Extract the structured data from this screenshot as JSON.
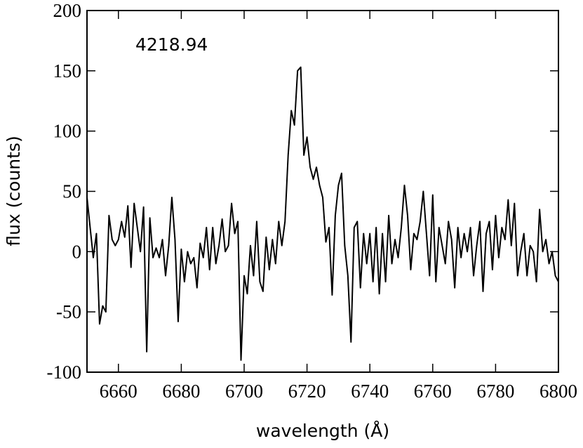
{
  "chart_data": {
    "type": "line",
    "annotation": "4218.94",
    "xlabel": "wavelength (Å)",
    "ylabel": "flux (counts)",
    "xlim": [
      6650,
      6800
    ],
    "ylim": [
      -100,
      200
    ],
    "xticks": [
      6660,
      6680,
      6700,
      6720,
      6740,
      6760,
      6780,
      6800
    ],
    "yticks": [
      -100,
      -50,
      0,
      50,
      100,
      150,
      200
    ],
    "grid": false,
    "series": [
      {
        "color": "#000000",
        "x": [
          6650,
          6651,
          6652,
          6653,
          6654,
          6655,
          6656,
          6657,
          6658,
          6659,
          6660,
          6661,
          6662,
          6663,
          6664,
          6665,
          6666,
          6667,
          6668,
          6669,
          6670,
          6671,
          6672,
          6673,
          6674,
          6675,
          6676,
          6677,
          6678,
          6679,
          6680,
          6681,
          6682,
          6683,
          6684,
          6685,
          6686,
          6687,
          6688,
          6689,
          6690,
          6691,
          6692,
          6693,
          6694,
          6695,
          6696,
          6697,
          6698,
          6699,
          6700,
          6701,
          6702,
          6703,
          6704,
          6705,
          6706,
          6707,
          6708,
          6709,
          6710,
          6711,
          6712,
          6713,
          6714,
          6715,
          6716,
          6717,
          6718,
          6719,
          6720,
          6721,
          6722,
          6723,
          6724,
          6725,
          6726,
          6727,
          6728,
          6729,
          6730,
          6731,
          6732,
          6733,
          6734,
          6735,
          6736,
          6737,
          6738,
          6739,
          6740,
          6741,
          6742,
          6743,
          6744,
          6745,
          6746,
          6747,
          6748,
          6749,
          6750,
          6751,
          6752,
          6753,
          6754,
          6755,
          6756,
          6757,
          6758,
          6759,
          6760,
          6761,
          6762,
          6763,
          6764,
          6765,
          6766,
          6767,
          6768,
          6769,
          6770,
          6771,
          6772,
          6773,
          6774,
          6775,
          6776,
          6777,
          6778,
          6779,
          6780,
          6781,
          6782,
          6783,
          6784,
          6785,
          6786,
          6787,
          6788,
          6789,
          6790,
          6791,
          6792,
          6793,
          6794,
          6795,
          6796,
          6797,
          6798,
          6799,
          6800
        ],
        "values": [
          45,
          20,
          -5,
          15,
          -60,
          -45,
          -50,
          30,
          10,
          5,
          10,
          25,
          12,
          38,
          -13,
          40,
          20,
          0,
          37,
          -83,
          28,
          -5,
          3,
          -5,
          10,
          -20,
          5,
          45,
          10,
          -58,
          2,
          -25,
          0,
          -10,
          -5,
          -30,
          7,
          -5,
          20,
          -15,
          20,
          -10,
          5,
          27,
          0,
          5,
          40,
          15,
          25,
          -90,
          -20,
          -35,
          5,
          -20,
          25,
          -25,
          -33,
          12,
          -15,
          10,
          -10,
          25,
          5,
          25,
          80,
          117,
          105,
          150,
          153,
          80,
          95,
          70,
          60,
          70,
          55,
          45,
          8,
          20,
          -36,
          30,
          55,
          65,
          5,
          -20,
          -75,
          20,
          25,
          -30,
          15,
          -10,
          15,
          -25,
          20,
          -35,
          15,
          -25,
          30,
          -10,
          10,
          -5,
          20,
          55,
          30,
          -15,
          15,
          10,
          25,
          50,
          15,
          -20,
          47,
          -25,
          20,
          5,
          -10,
          25,
          10,
          -30,
          20,
          -5,
          15,
          0,
          20,
          -20,
          5,
          25,
          -33,
          15,
          25,
          -15,
          30,
          -5,
          20,
          10,
          43,
          5,
          40,
          -20,
          0,
          15,
          -20,
          5,
          0,
          -25,
          35,
          0,
          10,
          -10,
          0,
          -20,
          -25
        ]
      }
    ]
  }
}
